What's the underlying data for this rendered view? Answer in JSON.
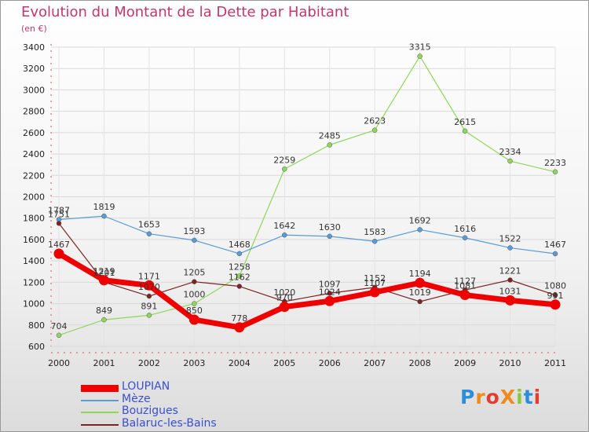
{
  "header": {
    "title": "Evolution du Montant de la Dette par Habitant",
    "subtitle": "(en €)"
  },
  "logo": {
    "text": "ProXiti",
    "colors": [
      "#2a8fd8",
      "#f08a1c",
      "#e23d30",
      "#f08a1c",
      "#8cc63f",
      "#2a8fd8",
      "#e23d30"
    ]
  },
  "chart_data": {
    "type": "line",
    "title": "Evolution du Montant de la Dette par Habitant",
    "ylabel": "(en €)",
    "xlabel": "",
    "ylim": [
      600,
      3400
    ],
    "yticks": [
      600,
      800,
      1000,
      1200,
      1400,
      1600,
      1800,
      2000,
      2200,
      2400,
      2600,
      2800,
      3000,
      3200,
      3400
    ],
    "categories": [
      "2000",
      "2001",
      "2002",
      "2003",
      "2004",
      "2005",
      "2006",
      "2007",
      "2008",
      "2009",
      "2010",
      "2011"
    ],
    "series": [
      {
        "name": "LOUPIAN",
        "color": "#ee0000",
        "values": [
          1467,
          1219,
          1171,
          850,
          778,
          970,
          1024,
          1107,
          1194,
          1081,
          1031,
          991
        ]
      },
      {
        "name": "Mèze",
        "color": "#5b9bd5",
        "values": [
          1787,
          1819,
          1653,
          1593,
          1468,
          1642,
          1630,
          1583,
          1692,
          1616,
          1522,
          1467
        ]
      },
      {
        "name": "Bouzigues",
        "color": "#8fd65a",
        "values": [
          704,
          849,
          891,
          1000,
          1258,
          2259,
          2485,
          2623,
          3315,
          2615,
          2334,
          2233
        ]
      },
      {
        "name": "Balaruc-les-Bains",
        "color": "#7a2424",
        "values": [
          1751,
          1201,
          1070,
          1205,
          1162,
          1020,
          1097,
          1152,
          1019,
          1127,
          1221,
          1080
        ]
      }
    ]
  }
}
